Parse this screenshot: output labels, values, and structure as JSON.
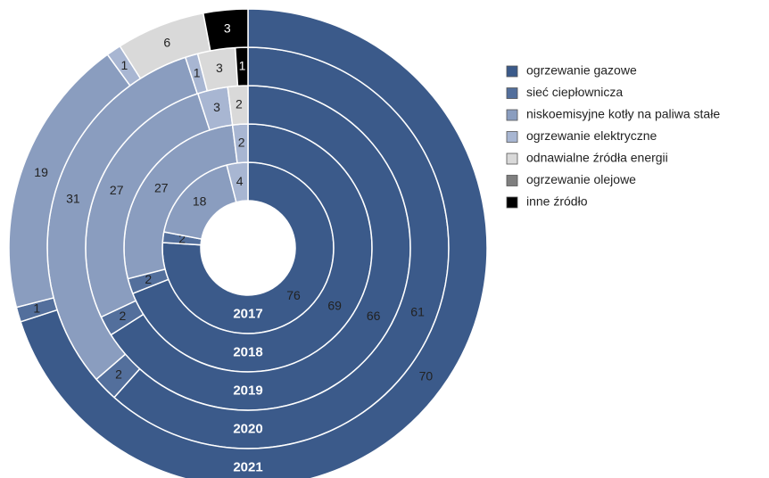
{
  "chart_data": {
    "type": "multi-ring-donut",
    "categories": [
      "2017",
      "2018",
      "2019",
      "2020",
      "2021"
    ],
    "series": [
      {
        "name": "ogrzewanie gazowe",
        "color": "#3b5a8a",
        "values": [
          76,
          69,
          66,
          61,
          70
        ]
      },
      {
        "name": "sieć ciepłownicza",
        "color": "#536f9c",
        "values": [
          2,
          2,
          2,
          2,
          1
        ]
      },
      {
        "name": "niskoemisyjne kotły na paliwa stałe",
        "color": "#8a9dbf",
        "values": [
          18,
          27,
          27,
          31,
          19
        ]
      },
      {
        "name": "ogrzewanie elektryczne",
        "color": "#a8b6d2",
        "values": [
          4,
          2,
          3,
          1,
          1
        ]
      },
      {
        "name": "odnawialne źródła energii",
        "color": "#d9d9d9",
        "values": [
          0,
          0,
          2,
          3,
          6
        ]
      },
      {
        "name": "ogrzewanie olejowe",
        "color": "#7f7f7f",
        "values": [
          0,
          0,
          0,
          0,
          0
        ]
      },
      {
        "name": "inne źródło",
        "color": "#000000",
        "values": [
          0,
          0,
          0,
          1,
          3
        ]
      }
    ],
    "legend": "right"
  }
}
